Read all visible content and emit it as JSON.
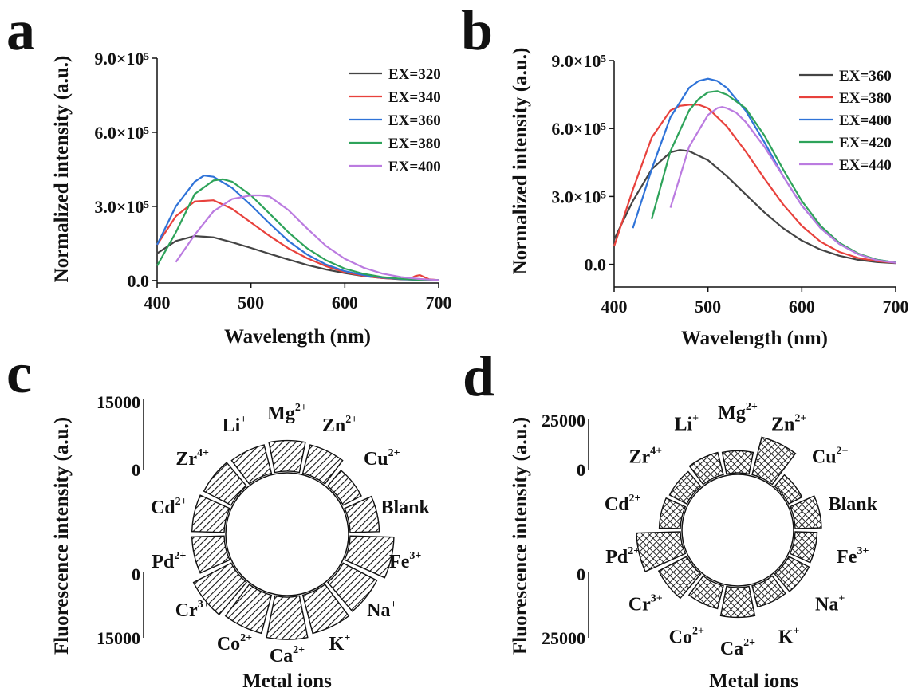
{
  "panels": [
    "a",
    "b",
    "c",
    "d"
  ],
  "chart_data": [
    {
      "panel": "a",
      "type": "line",
      "xlabel": "Wavelength (nm)",
      "ylabel": "Normalized intensity (a.u.)",
      "xlim": [
        400,
        700
      ],
      "ylim": [
        -10000,
        900000
      ],
      "xticks": [
        "400",
        "500",
        "600",
        "700"
      ],
      "yticks": [
        {
          "value": 0,
          "label": "0.0"
        },
        {
          "value": 300000,
          "label": "3.0×10⁵"
        },
        {
          "value": 600000,
          "label": "6.0×10⁵"
        },
        {
          "value": 900000,
          "label": "9.0×10⁵"
        }
      ],
      "legend_position": "top-right",
      "series": [
        {
          "name": "EX=320",
          "color": "#444444",
          "x": [
            400,
            420,
            440,
            460,
            480,
            500,
            520,
            540,
            560,
            580,
            600,
            620,
            640,
            660,
            680,
            700
          ],
          "y": [
            110000,
            160000,
            180000,
            175000,
            155000,
            132000,
            108000,
            85000,
            63000,
            45000,
            30000,
            18000,
            10000,
            5000,
            3000,
            2000
          ]
        },
        {
          "name": "EX=340",
          "color": "#e8413c",
          "x": [
            400,
            420,
            440,
            460,
            480,
            500,
            520,
            540,
            560,
            580,
            600,
            620,
            640,
            660,
            670,
            675,
            680,
            690,
            700
          ],
          "y": [
            145000,
            260000,
            320000,
            325000,
            290000,
            235000,
            180000,
            130000,
            90000,
            58000,
            34000,
            19000,
            10000,
            6000,
            8000,
            18000,
            22000,
            5000,
            2000
          ]
        },
        {
          "name": "EX=360",
          "color": "#2f73d8",
          "x": [
            400,
            420,
            440,
            450,
            460,
            480,
            500,
            520,
            540,
            560,
            580,
            600,
            620,
            640,
            660,
            680,
            700
          ],
          "y": [
            145000,
            300000,
            400000,
            425000,
            420000,
            375000,
            305000,
            230000,
            160000,
            105000,
            65000,
            38000,
            22000,
            12000,
            6000,
            3000,
            2000
          ]
        },
        {
          "name": "EX=380",
          "color": "#2ea35a",
          "x": [
            400,
            420,
            440,
            460,
            470,
            480,
            500,
            520,
            540,
            560,
            580,
            600,
            620,
            640,
            660,
            680,
            700
          ],
          "y": [
            60000,
            195000,
            350000,
            405000,
            410000,
            400000,
            345000,
            270000,
            195000,
            130000,
            82000,
            48000,
            27000,
            14000,
            7000,
            3000,
            2000
          ]
        },
        {
          "name": "EX=400",
          "color": "#bb7be0",
          "x": [
            420,
            440,
            460,
            480,
            500,
            510,
            520,
            540,
            560,
            580,
            600,
            620,
            640,
            660,
            680,
            700
          ],
          "y": [
            75000,
            185000,
            280000,
            330000,
            345000,
            345000,
            340000,
            285000,
            210000,
            140000,
            88000,
            52000,
            28000,
            14000,
            6000,
            2000
          ]
        }
      ]
    },
    {
      "panel": "b",
      "type": "line",
      "xlabel": "Wavelength (nm)",
      "ylabel": "Normalized intensity (a.u.)",
      "xlim": [
        400,
        700
      ],
      "ylim": [
        -100000,
        900000
      ],
      "xticks": [
        "400",
        "500",
        "600",
        "700"
      ],
      "yticks": [
        {
          "value": 0,
          "label": "0.0"
        },
        {
          "value": 300000,
          "label": "3.0×10⁵"
        },
        {
          "value": 600000,
          "label": "6.0×10⁵"
        },
        {
          "value": 900000,
          "label": "9.0×10⁵"
        }
      ],
      "legend_position": "top-right",
      "series": [
        {
          "name": "EX=360",
          "color": "#444444",
          "x": [
            400,
            420,
            440,
            460,
            470,
            480,
            500,
            520,
            540,
            560,
            580,
            600,
            620,
            640,
            660,
            680,
            700
          ],
          "y": [
            110000,
            280000,
            420000,
            495000,
            505000,
            500000,
            460000,
            390000,
            310000,
            230000,
            160000,
            105000,
            65000,
            38000,
            20000,
            10000,
            5000
          ]
        },
        {
          "name": "EX=380",
          "color": "#e8413c",
          "x": [
            400,
            420,
            440,
            460,
            470,
            480,
            490,
            500,
            520,
            540,
            560,
            580,
            600,
            620,
            640,
            660,
            680,
            700
          ],
          "y": [
            80000,
            330000,
            560000,
            680000,
            700000,
            705000,
            705000,
            690000,
            610000,
            500000,
            380000,
            265000,
            170000,
            100000,
            55000,
            28000,
            14000,
            7000
          ]
        },
        {
          "name": "EX=400",
          "color": "#2f73d8",
          "x": [
            420,
            440,
            460,
            480,
            490,
            500,
            510,
            520,
            540,
            560,
            580,
            600,
            620,
            640,
            660,
            680,
            700
          ],
          "y": [
            160000,
            420000,
            650000,
            780000,
            810000,
            820000,
            810000,
            780000,
            680000,
            540000,
            390000,
            260000,
            160000,
            90000,
            45000,
            20000,
            8000
          ]
        },
        {
          "name": "EX=420",
          "color": "#2ea35a",
          "x": [
            440,
            460,
            480,
            490,
            500,
            510,
            520,
            540,
            560,
            580,
            600,
            620,
            640,
            660,
            680,
            700
          ],
          "y": [
            200000,
            500000,
            680000,
            730000,
            760000,
            765000,
            750000,
            690000,
            570000,
            420000,
            280000,
            170000,
            95000,
            48000,
            20000,
            8000
          ]
        },
        {
          "name": "EX=440",
          "color": "#bb7be0",
          "x": [
            460,
            480,
            500,
            510,
            515,
            520,
            530,
            540,
            560,
            580,
            600,
            620,
            640,
            660,
            680,
            700
          ],
          "y": [
            250000,
            520000,
            660000,
            690000,
            695000,
            690000,
            670000,
            630000,
            520000,
            390000,
            260000,
            160000,
            90000,
            45000,
            18000,
            7000
          ]
        }
      ]
    },
    {
      "panel": "c",
      "type": "bar",
      "layout": "circular",
      "pattern": "diagonal-hatch",
      "xlabel": "Metal ions",
      "ylabel": "Fluorescence intensity (a.u.)",
      "upper_axis": {
        "top": "15000",
        "bottom": "0"
      },
      "lower_axis": {
        "top": "0",
        "bottom": "15000"
      },
      "categories": [
        {
          "base": "Mg",
          "sup": "2+"
        },
        {
          "base": "Zn",
          "sup": "2+"
        },
        {
          "base": "Cu",
          "sup": "2+"
        },
        {
          "base": "Blank",
          "sup": ""
        },
        {
          "base": "Fe",
          "sup": "3+"
        },
        {
          "base": "Na",
          "sup": "+"
        },
        {
          "base": "K",
          "sup": "+"
        },
        {
          "base": "Ca",
          "sup": "2+"
        },
        {
          "base": "Co",
          "sup": "2+"
        },
        {
          "base": "Cr",
          "sup": "3+"
        },
        {
          "base": "Pd",
          "sup": "2+"
        },
        {
          "base": "Cd",
          "sup": "2+"
        },
        {
          "base": "Zr",
          "sup": "4+"
        },
        {
          "base": "Li",
          "sup": "+"
        }
      ],
      "values": [
        10500,
        10000,
        7000,
        10000,
        15000,
        13000,
        13500,
        14500,
        13500,
        14500,
        11000,
        11000,
        10500,
        10000
      ]
    },
    {
      "panel": "d",
      "type": "bar",
      "layout": "circular",
      "pattern": "crosshatch",
      "xlabel": "Metal ions",
      "ylabel": "Fluorescence intensity (a.u.)",
      "upper_axis": {
        "top": "25000",
        "bottom": "0"
      },
      "lower_axis": {
        "top": "0",
        "bottom": "25000"
      },
      "categories": [
        {
          "base": "Mg",
          "sup": "2+"
        },
        {
          "base": "Zn",
          "sup": "2+"
        },
        {
          "base": "Cu",
          "sup": "2+"
        },
        {
          "base": "Blank",
          "sup": ""
        },
        {
          "base": "Fe",
          "sup": "3+"
        },
        {
          "base": "Na",
          "sup": "+"
        },
        {
          "base": "K",
          "sup": "+"
        },
        {
          "base": "Ca",
          "sup": "2+"
        },
        {
          "base": "Co",
          "sup": "2+"
        },
        {
          "base": "Cr",
          "sup": "3+"
        },
        {
          "base": "Pd",
          "sup": "2+"
        },
        {
          "base": "Cd",
          "sup": "2+"
        },
        {
          "base": "Zr",
          "sup": "4+"
        },
        {
          "base": "Li",
          "sup": "+"
        }
      ],
      "values": [
        12500,
        22000,
        8500,
        15000,
        12500,
        13000,
        12500,
        17000,
        13500,
        18000,
        25000,
        12000,
        11000,
        13000
      ]
    }
  ]
}
